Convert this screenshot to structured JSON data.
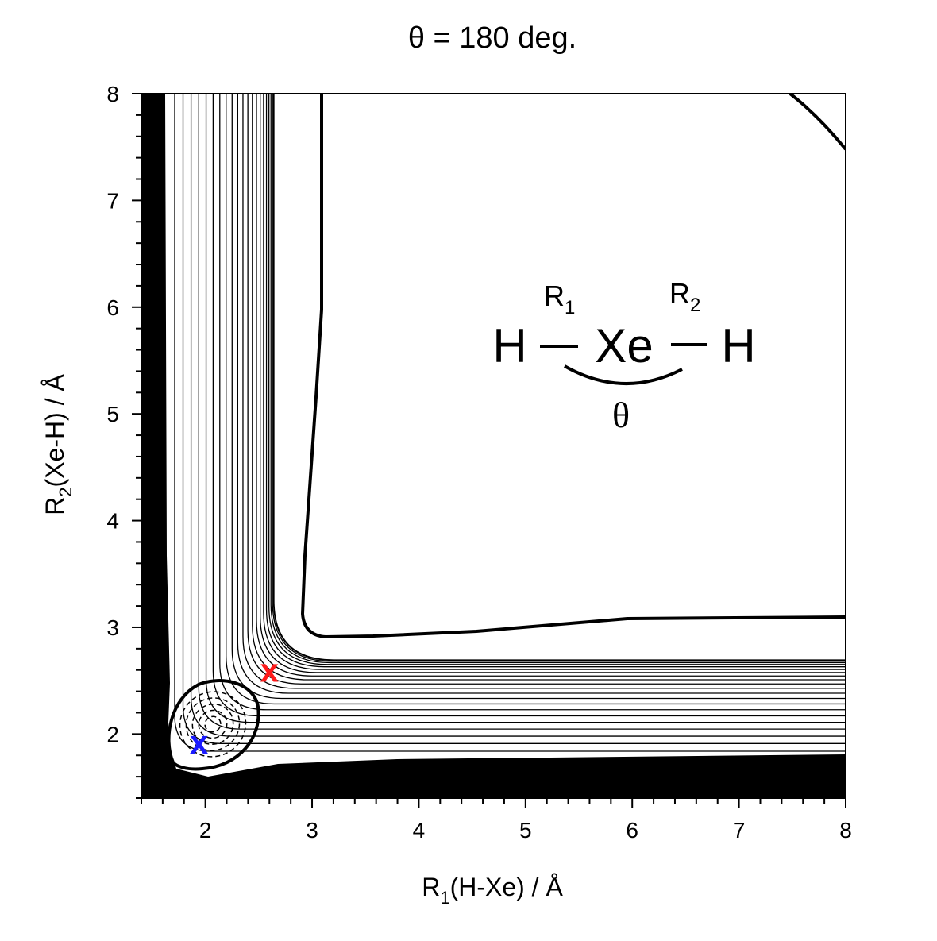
{
  "chart_data": {
    "type": "contour",
    "title": "θ = 180 deg.",
    "x_label": [
      "R",
      "1",
      "(H-Xe) / Å"
    ],
    "y_label": [
      "R",
      "2",
      "(Xe-H) / Å"
    ],
    "xlim": [
      1.4,
      8
    ],
    "ylim": [
      1.4,
      8
    ],
    "xticks": [
      2,
      3,
      4,
      5,
      6,
      7,
      8
    ],
    "yticks": [
      2,
      3,
      4,
      5,
      6,
      7,
      8
    ],
    "minor_ticks": [
      1.4,
      1.6,
      1.8,
      2.2,
      2.4,
      2.6,
      2.8,
      3.2,
      3.4,
      3.6,
      3.8,
      4.2,
      4.4,
      4.6,
      4.8,
      5.2,
      5.4,
      5.6,
      5.8,
      6.2,
      6.4,
      6.6,
      6.8,
      7.2,
      7.4,
      7.6,
      7.8
    ],
    "marker": "x",
    "points": {
      "x": [
        1.94,
        2.6
      ],
      "y": [
        1.93,
        2.6
      ],
      "colors": [
        "#1a1aff",
        "#ff1a1a"
      ]
    },
    "annotation": {
      "atoms": [
        "H",
        "Xe",
        "H"
      ],
      "r1": [
        "R",
        "1"
      ],
      "r2": [
        "R",
        "2"
      ],
      "angle": "θ"
    }
  }
}
